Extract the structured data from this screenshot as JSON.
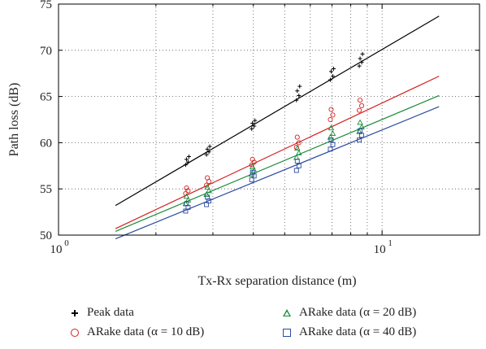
{
  "chart_data": {
    "type": "scatter",
    "title": "",
    "xlabel": "Tx-Rx separation distance (m)",
    "ylabel": "Path loss (dB)",
    "x_scale": "log",
    "xlim": [
      1,
      20
    ],
    "ylim": [
      50,
      75
    ],
    "y_ticks": [
      "50",
      "55",
      "60",
      "65",
      "70",
      "75"
    ],
    "x_tick_base": "10",
    "x_tick_exponents": [
      "0",
      "1"
    ],
    "grid": "dotted",
    "legend_position": "below",
    "distances": [
      2.5,
      2.9,
      4.0,
      5.5,
      7.0,
      8.6
    ],
    "series": [
      {
        "name": "Peak data",
        "marker": "plus",
        "color": "#000000",
        "points": [
          [
            2.5,
            [
              57.6,
              57.9,
              58.2,
              58.5
            ]
          ],
          [
            2.9,
            [
              58.7,
              59.0,
              59.3,
              59.6
            ]
          ],
          [
            4.0,
            [
              61.5,
              61.8,
              62.1,
              62.4
            ]
          ],
          [
            5.5,
            [
              64.6,
              65.1,
              65.6,
              66.1
            ]
          ],
          [
            7.0,
            [
              66.8,
              67.2,
              67.7,
              68.0
            ]
          ],
          [
            8.6,
            [
              68.3,
              68.7,
              69.1,
              69.6
            ]
          ]
        ],
        "fit": {
          "x": [
            1.5,
            15
          ],
          "y": [
            53.2,
            73.7
          ]
        }
      },
      {
        "name": "ARake data (α = 10 dB)",
        "marker": "circle",
        "color": "#d62020",
        "points": [
          [
            2.5,
            [
              54.5,
              54.8,
              55.1
            ]
          ],
          [
            2.9,
            [
              55.4,
              55.8,
              56.2
            ]
          ],
          [
            4.0,
            [
              57.6,
              57.9,
              58.2
            ]
          ],
          [
            5.5,
            [
              59.5,
              60.0,
              60.6
            ]
          ],
          [
            7.0,
            [
              62.5,
              63.0,
              63.6
            ]
          ],
          [
            8.6,
            [
              63.5,
              64.0,
              64.6
            ]
          ]
        ],
        "fit": {
          "x": [
            1.5,
            15
          ],
          "y": [
            50.7,
            67.2
          ]
        }
      },
      {
        "name": "ARake data (α = 20 dB)",
        "marker": "triangle",
        "color": "#1a8a3a",
        "points": [
          [
            2.5,
            [
              53.4,
              53.8,
              54.2
            ]
          ],
          [
            2.9,
            [
              54.4,
              54.8,
              55.2
            ]
          ],
          [
            4.0,
            [
              56.6,
              57.0,
              57.4
            ]
          ],
          [
            5.5,
            [
              58.4,
              58.9,
              59.4
            ]
          ],
          [
            7.0,
            [
              60.6,
              61.0,
              61.6
            ]
          ],
          [
            8.6,
            [
              61.2,
              61.7,
              62.2
            ]
          ]
        ],
        "fit": {
          "x": [
            1.5,
            15
          ],
          "y": [
            50.4,
            65.1
          ]
        }
      },
      {
        "name": "ARake data (α = 40 dB)",
        "marker": "square",
        "color": "#2b4aa0",
        "points": [
          [
            2.5,
            [
              52.6,
              53.0,
              53.4
            ]
          ],
          [
            2.9,
            [
              53.3,
              53.7,
              54.1
            ]
          ],
          [
            4.0,
            [
              56.0,
              56.4,
              56.8
            ]
          ],
          [
            5.5,
            [
              57.0,
              57.5,
              58.0
            ]
          ],
          [
            7.0,
            [
              59.3,
              59.8,
              60.3
            ]
          ],
          [
            8.6,
            [
              60.3,
              60.8,
              61.3
            ]
          ]
        ],
        "fit": {
          "x": [
            1.5,
            15
          ],
          "y": [
            49.6,
            63.9
          ]
        }
      }
    ]
  }
}
